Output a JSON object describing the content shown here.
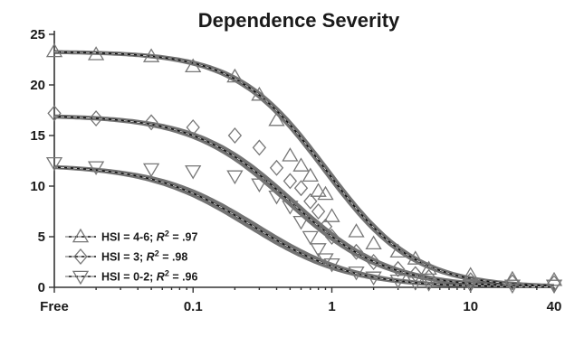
{
  "chart_data": {
    "type": "scatter",
    "title": "Dependence Severity",
    "xlabel": "",
    "ylabel": "",
    "x_scale": "log",
    "x_ticks": [
      "Free",
      "0.1",
      "1",
      "10",
      "40"
    ],
    "x_tick_values": [
      0.01,
      0.1,
      1,
      10,
      40
    ],
    "ylim": [
      0,
      25
    ],
    "y_ticks": [
      0,
      5,
      10,
      15,
      20,
      25
    ],
    "x": [
      0.01,
      0.02,
      0.05,
      0.1,
      0.2,
      0.3,
      0.4,
      0.5,
      0.6,
      0.7,
      0.8,
      0.9,
      1,
      1.5,
      2,
      3,
      4,
      5,
      10,
      20,
      40
    ],
    "legend_position": "bottom-left",
    "grid": false,
    "series": [
      {
        "name": "HSI = 4-6; R² = .97",
        "legend_prefix": "HSI = 4-6; ",
        "legend_r": "R",
        "legend_sup": "2",
        "legend_suffix": " = .97",
        "marker": "triangle-up",
        "values": [
          23.3,
          23.0,
          22.8,
          21.8,
          20.8,
          19.0,
          16.5,
          13.0,
          12.0,
          11.0,
          9.5,
          9.2,
          7.0,
          5.5,
          4.3,
          3.5,
          2.8,
          1.8,
          1.2,
          0.8,
          0.7
        ]
      },
      {
        "name": "HSI = 3; R² = .98",
        "legend_prefix": "HSI = 3; ",
        "legend_r": "R",
        "legend_sup": "2",
        "legend_suffix": " = .98",
        "marker": "diamond",
        "values": [
          17.2,
          16.7,
          16.3,
          15.8,
          15.0,
          13.8,
          11.8,
          10.5,
          9.8,
          8.5,
          7.5,
          6.0,
          5.0,
          3.5,
          2.5,
          1.8,
          1.3,
          1.0,
          0.7,
          0.5,
          0.4
        ]
      },
      {
        "name": "HSI = 0-2; R² = .96",
        "legend_prefix": "HSI = 0-2; ",
        "legend_r": "R",
        "legend_sup": "2",
        "legend_suffix": " = .96",
        "marker": "triangle-down",
        "values": [
          12.3,
          11.9,
          11.7,
          11.5,
          11.0,
          10.2,
          9.0,
          8.0,
          6.5,
          5.0,
          3.8,
          2.8,
          2.3,
          1.5,
          1.0,
          0.7,
          0.5,
          0.4,
          0.3,
          0.2,
          0.2
        ]
      }
    ],
    "fits": [
      {
        "top": 23.3,
        "ec50": 0.9,
        "slope": 1.35,
        "halfwidth": 0.55
      },
      {
        "top": 17.0,
        "ec50": 0.5,
        "slope": 1.25,
        "halfwidth": 0.55
      },
      {
        "top": 12.1,
        "ec50": 0.27,
        "slope": 1.2,
        "halfwidth": 0.5
      }
    ]
  }
}
